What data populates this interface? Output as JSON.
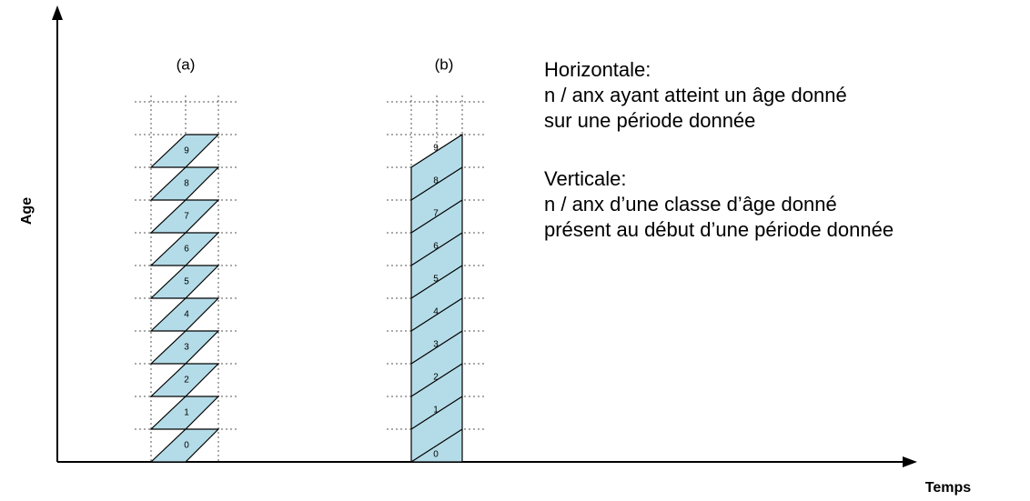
{
  "axes": {
    "y": "Age",
    "x": "Temps"
  },
  "panels": [
    {
      "label": "(a)",
      "cells": [
        0,
        1,
        2,
        3,
        4,
        5,
        6,
        7,
        8,
        9
      ]
    },
    {
      "label": "(b)",
      "cells": [
        0,
        1,
        2,
        3,
        4,
        5,
        6,
        7,
        8,
        9
      ]
    }
  ],
  "notes": [
    {
      "title": "Horizontale:",
      "lines": [
        "n / anx ayant atteint un âge donné",
        "sur une période donnée"
      ]
    },
    {
      "title": "Verticale:",
      "lines": [
        "n / anx d’une classe d’âge donné",
        "présent au début d’une période donnée"
      ]
    }
  ]
}
